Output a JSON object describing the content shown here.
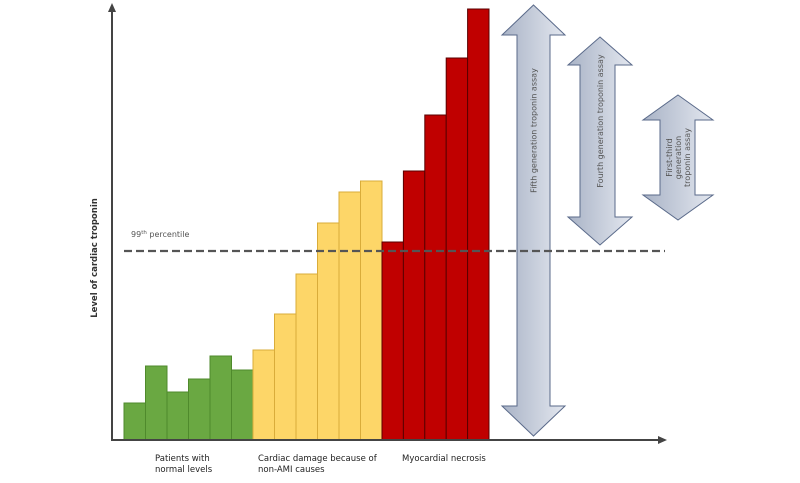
{
  "chart_data": {
    "type": "bar",
    "ylabel": "Level of cardiac troponin",
    "ylim": [
      0,
      435
    ],
    "threshold": {
      "label_main": "99",
      "label_sup": "th",
      "label_rest": " percentile",
      "value": 189
    },
    "groups": [
      {
        "name_lines": [
          "Patients with",
          "normal levels"
        ],
        "color": "#6aa842",
        "edge": "#4f8a2c",
        "values": [
          37,
          74,
          48,
          61,
          84,
          70
        ]
      },
      {
        "name_lines": [
          "Cardiac damage because of",
          "non-AMI causes"
        ],
        "color": "#fdd668",
        "edge": "#d9ac3a",
        "values": [
          90,
          126,
          166,
          217,
          248,
          259
        ]
      },
      {
        "name_lines": [
          "Myocardial necrosis"
        ],
        "color": "#c00000",
        "edge": "#5a0000",
        "values": [
          198,
          269,
          325,
          382,
          431
        ]
      }
    ],
    "assays": [
      {
        "label_lines": [
          "Fifth generation troponin assay"
        ],
        "range": [
          4,
          435
        ]
      },
      {
        "label_lines": [
          "Fourth generation troponin assay"
        ],
        "range": [
          195,
          403
        ]
      },
      {
        "label_lines": [
          "First-third",
          "generation",
          "troponin assay"
        ],
        "range": [
          220,
          345
        ]
      }
    ],
    "colors": {
      "axis": "#444444",
      "arrow_fill_top": "#9aa5b8",
      "arrow_fill_bottom": "#dfe3ec",
      "arrow_edge": "#5a6a8a",
      "threshold_line": "#555555"
    }
  }
}
